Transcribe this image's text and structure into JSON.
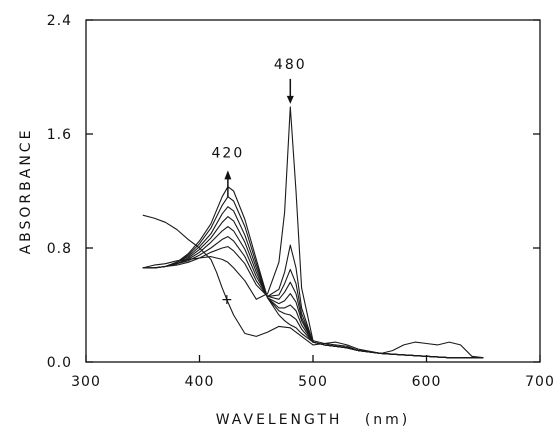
{
  "chart_data": {
    "type": "line",
    "xlabel": "WAVELENGTH   (nm)",
    "ylabel": "ABSORBANCE",
    "xlim": [
      300,
      700
    ],
    "ylim": [
      0,
      2.4
    ],
    "xticks": [
      300,
      400,
      500,
      600,
      700
    ],
    "yticks": [
      0.0,
      0.8,
      1.6,
      2.4
    ],
    "xtick_labels": [
      "300",
      "400",
      "500",
      "600",
      "700"
    ],
    "ytick_labels": [
      "0.0",
      "0.8",
      "1.6",
      "2.4"
    ],
    "grid": false,
    "legend": "none",
    "annotations": [
      {
        "text": "480",
        "x": 480,
        "y": 1.79,
        "arrow": "down"
      },
      {
        "text": "420",
        "x": 425,
        "y": 1.38,
        "arrow": "up"
      },
      {
        "text": "+",
        "x": 425,
        "y": 0.45,
        "arrow": "none"
      }
    ],
    "series": [
      {
        "x": [
          350,
          360,
          370,
          380,
          390,
          400,
          410,
          420,
          425,
          430,
          440,
          450,
          460,
          470,
          475,
          480,
          485,
          490,
          500,
          510,
          520,
          530,
          540,
          560,
          580,
          600,
          620,
          640,
          650
        ],
        "y": [
          0.66,
          0.66,
          0.67,
          0.7,
          0.76,
          0.85,
          0.97,
          1.16,
          1.23,
          1.2,
          1.0,
          0.72,
          0.45,
          0.33,
          0.29,
          0.26,
          0.24,
          0.2,
          0.14,
          0.12,
          0.11,
          0.1,
          0.08,
          0.06,
          0.05,
          0.04,
          0.03,
          0.03,
          0.03
        ]
      },
      {
        "x": [
          350,
          360,
          370,
          380,
          390,
          400,
          410,
          420,
          425,
          430,
          440,
          450,
          460,
          470,
          475,
          480,
          485,
          490,
          500,
          510,
          520,
          530,
          540,
          560,
          580,
          600,
          620,
          640,
          650
        ],
        "y": [
          0.66,
          0.66,
          0.67,
          0.7,
          0.75,
          0.83,
          0.94,
          1.1,
          1.16,
          1.13,
          0.95,
          0.69,
          0.45,
          0.36,
          0.34,
          0.33,
          0.3,
          0.23,
          0.14,
          0.12,
          0.11,
          0.1,
          0.08,
          0.06,
          0.05,
          0.04,
          0.03,
          0.03,
          0.03
        ]
      },
      {
        "x": [
          350,
          360,
          370,
          380,
          390,
          400,
          410,
          420,
          425,
          430,
          440,
          450,
          460,
          470,
          475,
          480,
          485,
          490,
          500,
          510,
          520,
          530,
          540,
          560,
          580,
          600,
          620,
          640,
          650
        ],
        "y": [
          0.66,
          0.66,
          0.67,
          0.7,
          0.74,
          0.81,
          0.9,
          1.04,
          1.09,
          1.06,
          0.89,
          0.66,
          0.45,
          0.38,
          0.38,
          0.4,
          0.36,
          0.26,
          0.14,
          0.12,
          0.11,
          0.1,
          0.08,
          0.06,
          0.05,
          0.04,
          0.03,
          0.03,
          0.03
        ]
      },
      {
        "x": [
          350,
          360,
          370,
          380,
          390,
          400,
          410,
          420,
          425,
          430,
          440,
          450,
          460,
          470,
          475,
          480,
          485,
          490,
          500,
          510,
          520,
          530,
          540,
          560,
          580,
          600,
          620,
          640,
          650
        ],
        "y": [
          0.66,
          0.66,
          0.67,
          0.69,
          0.73,
          0.79,
          0.87,
          0.98,
          1.02,
          0.99,
          0.84,
          0.63,
          0.45,
          0.41,
          0.43,
          0.48,
          0.42,
          0.29,
          0.14,
          0.12,
          0.11,
          0.1,
          0.08,
          0.06,
          0.05,
          0.04,
          0.03,
          0.03,
          0.03
        ]
      },
      {
        "x": [
          350,
          360,
          370,
          380,
          390,
          400,
          410,
          420,
          425,
          430,
          440,
          450,
          460,
          470,
          475,
          480,
          485,
          490,
          500,
          510,
          520,
          530,
          540,
          560,
          580,
          600,
          620,
          640,
          650
        ],
        "y": [
          0.66,
          0.66,
          0.67,
          0.69,
          0.72,
          0.77,
          0.84,
          0.92,
          0.95,
          0.92,
          0.79,
          0.6,
          0.46,
          0.44,
          0.49,
          0.56,
          0.48,
          0.31,
          0.14,
          0.12,
          0.11,
          0.1,
          0.08,
          0.06,
          0.05,
          0.04,
          0.03,
          0.03,
          0.03
        ]
      },
      {
        "x": [
          350,
          360,
          370,
          380,
          390,
          400,
          410,
          420,
          425,
          430,
          440,
          450,
          460,
          470,
          475,
          480,
          485,
          490,
          500,
          510,
          520,
          530,
          540,
          560,
          580,
          600,
          620,
          640,
          650
        ],
        "y": [
          0.66,
          0.66,
          0.67,
          0.69,
          0.71,
          0.75,
          0.8,
          0.86,
          0.88,
          0.85,
          0.74,
          0.57,
          0.46,
          0.47,
          0.55,
          0.65,
          0.55,
          0.34,
          0.14,
          0.12,
          0.11,
          0.1,
          0.08,
          0.06,
          0.05,
          0.04,
          0.03,
          0.03,
          0.03
        ]
      },
      {
        "x": [
          350,
          360,
          370,
          380,
          390,
          400,
          410,
          420,
          425,
          430,
          440,
          450,
          460,
          470,
          475,
          480,
          485,
          490,
          500,
          510,
          520,
          530,
          540,
          560,
          580,
          600,
          620,
          640,
          650
        ],
        "y": [
          0.66,
          0.66,
          0.67,
          0.68,
          0.7,
          0.73,
          0.77,
          0.8,
          0.81,
          0.78,
          0.69,
          0.54,
          0.46,
          0.51,
          0.63,
          0.82,
          0.66,
          0.38,
          0.14,
          0.12,
          0.11,
          0.1,
          0.08,
          0.06,
          0.05,
          0.04,
          0.03,
          0.03,
          0.03
        ]
      },
      {
        "x": [
          350,
          360,
          370,
          380,
          390,
          400,
          410,
          420,
          425,
          430,
          440,
          450,
          460,
          470,
          475,
          480,
          485,
          490,
          500,
          510,
          520,
          530,
          540,
          560,
          580,
          600,
          620,
          640,
          650
        ],
        "y": [
          0.66,
          0.68,
          0.69,
          0.71,
          0.72,
          0.73,
          0.74,
          0.72,
          0.7,
          0.66,
          0.57,
          0.44,
          0.48,
          0.7,
          1.05,
          1.79,
          1.2,
          0.52,
          0.15,
          0.13,
          0.12,
          0.11,
          0.08,
          0.06,
          0.05,
          0.04,
          0.03,
          0.03,
          0.03
        ]
      },
      {
        "x": [
          350,
          360,
          370,
          380,
          390,
          400,
          410,
          415,
          420,
          425,
          430,
          440,
          450,
          460,
          470,
          480,
          490,
          500,
          510,
          520,
          530,
          540,
          560,
          570,
          580,
          590,
          600,
          610,
          620,
          630,
          640,
          650
        ],
        "y": [
          1.03,
          1.01,
          0.98,
          0.93,
          0.86,
          0.8,
          0.72,
          0.63,
          0.52,
          0.42,
          0.33,
          0.2,
          0.18,
          0.21,
          0.25,
          0.24,
          0.18,
          0.12,
          0.13,
          0.14,
          0.12,
          0.09,
          0.06,
          0.08,
          0.12,
          0.14,
          0.13,
          0.12,
          0.14,
          0.12,
          0.04,
          0.03
        ]
      }
    ]
  }
}
